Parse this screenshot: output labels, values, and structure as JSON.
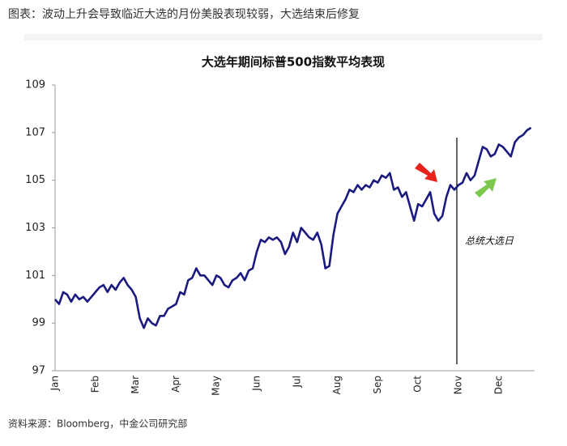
{
  "header": "图表：波动上升会导致临近大选的月份美股表现较弱，大选结束后修复",
  "source": "资料来源：Bloomberg，中金公司研究部",
  "chart_data": {
    "type": "line",
    "title": "大选年期间标普500指数平均表现",
    "annotations": [
      "总统大选日"
    ],
    "color": "#1a1a80",
    "ylim": [
      97,
      109
    ],
    "yticks": [
      97,
      99,
      101,
      103,
      105,
      107,
      109
    ],
    "categories": [
      "Jan",
      null,
      null,
      null,
      null,
      null,
      null,
      null,
      null,
      null,
      "Feb",
      null,
      null,
      null,
      null,
      null,
      null,
      null,
      null,
      null,
      "Mar",
      null,
      null,
      null,
      null,
      null,
      null,
      null,
      null,
      null,
      "Apr",
      null,
      null,
      null,
      null,
      null,
      null,
      null,
      null,
      null,
      "May",
      null,
      null,
      null,
      null,
      null,
      null,
      null,
      null,
      null,
      "Jun",
      null,
      null,
      null,
      null,
      null,
      null,
      null,
      null,
      null,
      "Jul",
      null,
      null,
      null,
      null,
      null,
      null,
      null,
      null,
      null,
      "Aug",
      null,
      null,
      null,
      null,
      null,
      null,
      null,
      null,
      null,
      "Sep",
      null,
      null,
      null,
      null,
      null,
      null,
      null,
      null,
      null,
      "Oct",
      null,
      null,
      null,
      null,
      null,
      null,
      null,
      null,
      null,
      "Nov",
      null,
      null,
      null,
      null,
      null,
      null,
      null,
      null,
      null,
      "Dec",
      null,
      null,
      null,
      null,
      null,
      null,
      null,
      null
    ],
    "values": [
      100.0,
      99.8,
      100.3,
      100.2,
      99.9,
      100.2,
      100.0,
      100.1,
      99.9,
      100.1,
      100.3,
      100.5,
      100.6,
      100.3,
      100.6,
      100.4,
      100.7,
      100.9,
      100.6,
      100.4,
      100.1,
      99.2,
      98.8,
      99.2,
      99.0,
      98.9,
      99.3,
      99.3,
      99.6,
      99.7,
      99.8,
      100.3,
      100.2,
      100.8,
      100.9,
      101.3,
      101.0,
      101.0,
      100.8,
      100.6,
      101.0,
      100.9,
      100.6,
      100.5,
      100.8,
      100.9,
      101.1,
      100.8,
      101.2,
      101.3,
      102.0,
      102.5,
      102.4,
      102.6,
      102.5,
      102.6,
      102.4,
      101.9,
      102.2,
      102.8,
      102.4,
      103.0,
      102.8,
      102.6,
      102.5,
      102.8,
      102.3,
      101.3,
      101.4,
      102.7,
      103.6,
      103.9,
      104.2,
      104.6,
      104.5,
      104.8,
      104.6,
      104.8,
      104.7,
      105.0,
      104.9,
      105.2,
      105.1,
      105.3,
      104.6,
      104.7,
      104.3,
      104.5,
      103.9,
      103.3,
      104.0,
      103.9,
      104.2,
      104.5,
      103.6,
      103.3,
      103.5,
      104.3,
      104.8,
      104.6,
      104.8,
      104.9,
      105.3,
      105.0,
      105.2,
      105.8,
      106.4,
      106.3,
      106.0,
      106.1,
      106.5,
      106.4,
      106.2,
      106.0,
      106.6,
      106.8,
      106.9,
      107.1,
      107.2
    ]
  }
}
